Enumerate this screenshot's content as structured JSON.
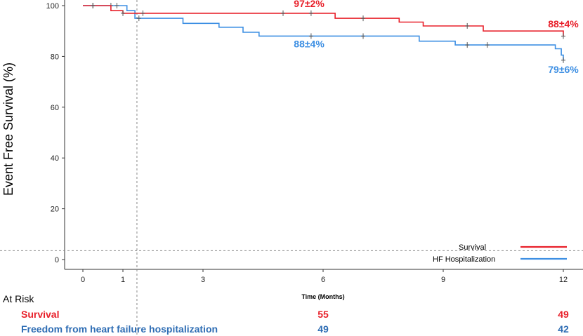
{
  "chart_data": {
    "type": "line",
    "subtype": "kaplan-meier",
    "title": "",
    "xlabel": "Time (Months)",
    "ylabel": "Event Free Survival (%)",
    "xlim": [
      -0.5,
      12.3
    ],
    "ylim": [
      -2,
      101
    ],
    "x_ticks": [
      0,
      1,
      3,
      6,
      9,
      12
    ],
    "y_ticks": [
      0,
      20,
      40,
      60,
      80,
      100
    ],
    "grid": false,
    "reference_lines": {
      "vertical_x": 1.35,
      "horizontal_y": 3.5
    },
    "legend_position": "bottom-right",
    "series": [
      {
        "name": "Survival",
        "color": "#e8202a",
        "steps": [
          [
            0,
            100
          ],
          [
            0.7,
            100
          ],
          [
            0.7,
            98
          ],
          [
            1.0,
            98
          ],
          [
            1.0,
            97
          ],
          [
            6.3,
            97
          ],
          [
            6.3,
            95
          ],
          [
            7.9,
            95
          ],
          [
            7.9,
            93.5
          ],
          [
            8.5,
            93.5
          ],
          [
            8.5,
            92
          ],
          [
            10.0,
            92
          ],
          [
            10.0,
            90
          ],
          [
            12.0,
            90
          ],
          [
            12.0,
            88
          ]
        ],
        "censor_x": [
          0.25,
          1.0,
          1.5,
          5.0,
          5.7,
          7.0,
          9.6,
          12.0
        ],
        "annotations": [
          {
            "text": "97±2%",
            "x": 5.65,
            "y": 99.5
          },
          {
            "text": "88±4%",
            "x": 12.0,
            "y": 91.5
          }
        ]
      },
      {
        "name": "HF Hospitalization",
        "color": "#3d8fe3",
        "steps": [
          [
            0,
            100
          ],
          [
            1.1,
            100
          ],
          [
            1.1,
            98
          ],
          [
            1.3,
            98
          ],
          [
            1.3,
            95
          ],
          [
            2.5,
            95
          ],
          [
            2.5,
            93
          ],
          [
            3.4,
            93
          ],
          [
            3.4,
            91.5
          ],
          [
            4.0,
            91.5
          ],
          [
            4.0,
            89.5
          ],
          [
            4.4,
            89.5
          ],
          [
            4.4,
            88
          ],
          [
            8.4,
            88
          ],
          [
            8.4,
            86
          ],
          [
            9.3,
            86
          ],
          [
            9.3,
            84.5
          ],
          [
            11.8,
            84.5
          ],
          [
            11.8,
            83
          ],
          [
            11.95,
            83
          ],
          [
            11.95,
            80.5
          ],
          [
            12.0,
            80.5
          ],
          [
            12.0,
            78.5
          ]
        ],
        "censor_x": [
          0.25,
          0.7,
          0.85,
          1.4,
          5.7,
          7.0,
          9.6,
          10.1,
          12.0
        ],
        "annotations": [
          {
            "text": "88±4%",
            "x": 5.65,
            "y": 83.5
          },
          {
            "text": "79±6%",
            "x": 12.0,
            "y": 73.5
          }
        ]
      }
    ],
    "at_risk": {
      "heading": "At Risk",
      "rows": [
        {
          "label": "Survival",
          "color": "#e8202a",
          "values": {
            "6": "55",
            "12": "49"
          }
        },
        {
          "label": "Freedom from heart failure hospitalization",
          "color": "#2e6db4",
          "values": {
            "6": "49",
            "12": "42"
          }
        }
      ]
    }
  }
}
